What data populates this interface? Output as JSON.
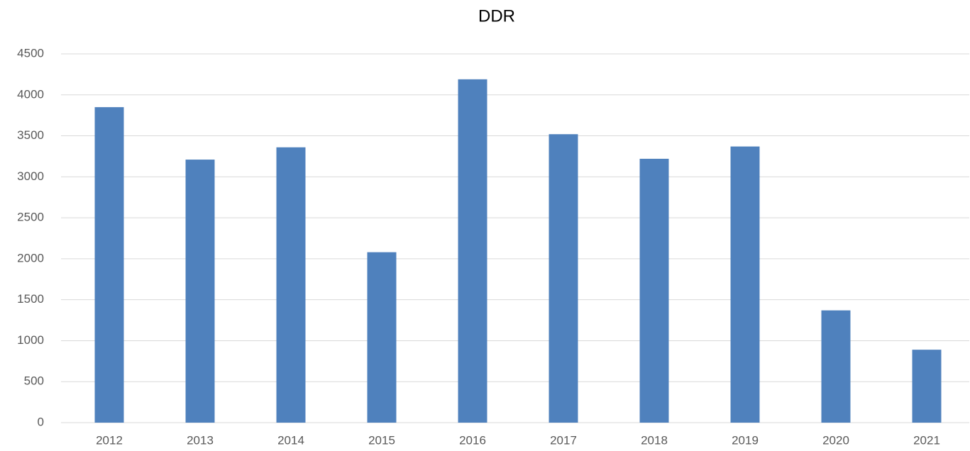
{
  "chart_data": {
    "type": "bar",
    "title": "DDR",
    "categories": [
      "2012",
      "2013",
      "2014",
      "2015",
      "2016",
      "2017",
      "2018",
      "2019",
      "2020",
      "2021"
    ],
    "values": [
      3850,
      3210,
      3360,
      2080,
      4190,
      3520,
      3220,
      3370,
      1370,
      890
    ],
    "color": "#4f81bd",
    "ylim": [
      0,
      4500
    ],
    "yticks": [
      0,
      500,
      1000,
      1500,
      2000,
      2500,
      3000,
      3500,
      4000,
      4500
    ],
    "grid": true
  }
}
